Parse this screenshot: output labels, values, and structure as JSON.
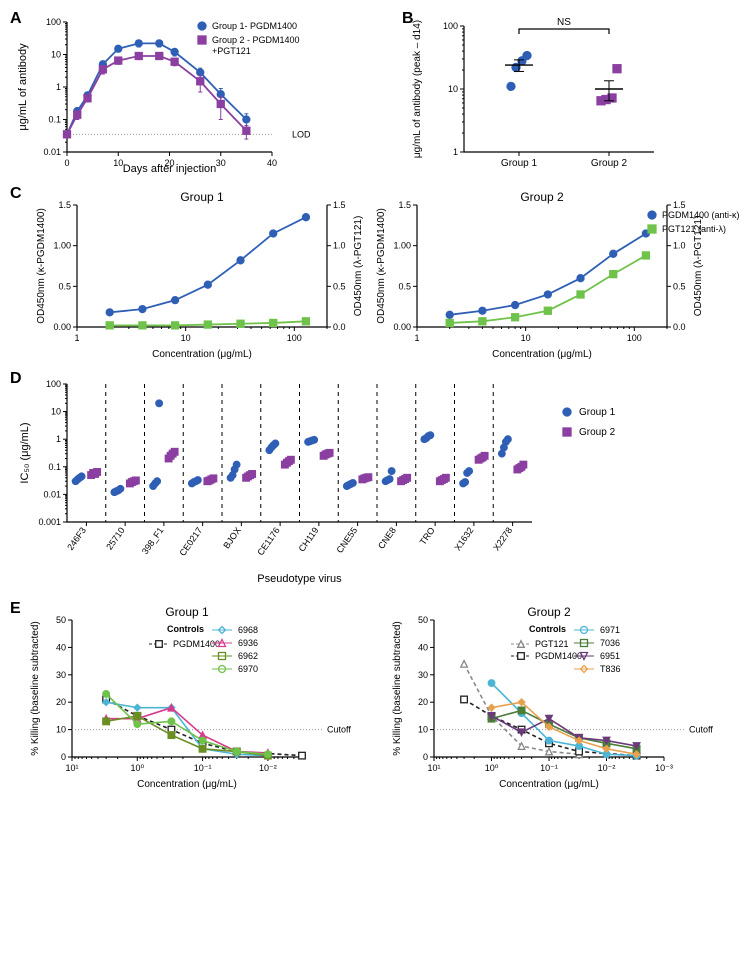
{
  "colors": {
    "blue": "#2e5fb5",
    "purple": "#8b3fa0",
    "green": "#6fc24a",
    "pink": "#d63b8e",
    "cyan": "#4cb5d6",
    "olive": "#6b8e23",
    "orange": "#e8a04d",
    "black": "#222222",
    "gray": "#888888"
  },
  "panelA": {
    "label": "A",
    "type": "line",
    "xlabel": "Days after injection",
    "ylabel": "μg/mL of antibody",
    "xlim": [
      0,
      40
    ],
    "xticks": [
      0,
      10,
      20,
      30,
      40
    ],
    "ylim": [
      0.01,
      100
    ],
    "yticks": [
      0.01,
      0.1,
      1,
      10,
      100
    ],
    "lod_y": 0.035,
    "lod_label": "LOD",
    "series": [
      {
        "name": "Group 1- PGDM1400",
        "color": "#2e5fb5",
        "marker": "circle",
        "x": [
          0,
          2,
          4,
          7,
          10,
          14,
          18,
          21,
          26,
          30,
          35
        ],
        "y": [
          0.035,
          0.18,
          0.55,
          5,
          15,
          22,
          22,
          12,
          2.8,
          0.6,
          0.1
        ],
        "err": [
          0,
          0.05,
          0.12,
          1.2,
          3,
          5,
          5,
          3,
          1,
          0.3,
          0.05
        ]
      },
      {
        "name": "Group 2 - PGDM1400 +PGT121",
        "color": "#8b3fa0",
        "marker": "square",
        "x": [
          0,
          2,
          4,
          7,
          10,
          14,
          18,
          21,
          26,
          30,
          35
        ],
        "y": [
          0.035,
          0.14,
          0.45,
          3.5,
          6.5,
          9,
          9,
          6,
          1.5,
          0.3,
          0.045
        ],
        "err": [
          0,
          0.04,
          0.1,
          1,
          1.5,
          2,
          2,
          1.5,
          0.8,
          0.2,
          0.02
        ]
      }
    ],
    "legend": [
      "Group 1- PGDM1400",
      "Group 2 - PGDM1400\n                 +PGT121"
    ]
  },
  "panelB": {
    "label": "B",
    "type": "strip",
    "ylabel": "μg/mL of antibody (peak – d14)",
    "ylim": [
      1,
      100
    ],
    "yticks": [
      1,
      10,
      100
    ],
    "ns_label": "NS",
    "categories": [
      "Group 1",
      "Group 2"
    ],
    "points": [
      {
        "group": 0,
        "y": [
          11,
          22,
          28,
          34
        ],
        "color": "#2e5fb5",
        "marker": "circle",
        "mean": 24,
        "sem": 5
      },
      {
        "group": 1,
        "y": [
          6.5,
          6.8,
          7.2,
          21
        ],
        "color": "#8b3fa0",
        "marker": "square",
        "mean": 10,
        "sem": 3.5
      }
    ]
  },
  "panelC": {
    "label": "C",
    "type": "line-dual-y",
    "xlabel": "Concentration (μg/mL)",
    "ylabel_left": "OD450nm (κ-PGDM1400)",
    "ylabel_right": "OD450nm (λ-PGT121)",
    "xlim": [
      1,
      200
    ],
    "xticks": [
      1,
      10,
      100
    ],
    "ylim": [
      0,
      1.5
    ],
    "yticks": [
      0,
      0.5,
      1.0,
      1.5
    ],
    "titles": [
      "Group 1",
      "Group 2"
    ],
    "legend": [
      {
        "name": "PGDM1400 (anti-κ)",
        "color": "#2e5fb5",
        "marker": "circle"
      },
      {
        "name": "PGT121 (anti-λ)",
        "color": "#6fc24a",
        "marker": "square"
      }
    ],
    "left": {
      "kappa": {
        "x": [
          2,
          4,
          8,
          16,
          32,
          64,
          128
        ],
        "y": [
          0.18,
          0.22,
          0.33,
          0.52,
          0.82,
          1.15,
          1.35
        ],
        "err": [
          0.02,
          0.02,
          0.02,
          0.03,
          0.04,
          0.05,
          0.05
        ]
      },
      "lambda": {
        "x": [
          2,
          4,
          8,
          16,
          32,
          64,
          128
        ],
        "y": [
          0.02,
          0.02,
          0.02,
          0.03,
          0.04,
          0.05,
          0.07
        ],
        "err": [
          0.01,
          0.01,
          0.01,
          0.01,
          0.01,
          0.01,
          0.01
        ]
      }
    },
    "right": {
      "kappa": {
        "x": [
          2,
          4,
          8,
          16,
          32,
          64,
          128
        ],
        "y": [
          0.15,
          0.2,
          0.27,
          0.4,
          0.6,
          0.9,
          1.15
        ],
        "err": [
          0.02,
          0.02,
          0.02,
          0.03,
          0.03,
          0.04,
          0.04
        ]
      },
      "lambda": {
        "x": [
          2,
          4,
          8,
          16,
          32,
          64,
          128
        ],
        "y": [
          0.05,
          0.07,
          0.12,
          0.2,
          0.4,
          0.65,
          0.88
        ],
        "err": [
          0.01,
          0.01,
          0.02,
          0.02,
          0.03,
          0.04,
          0.04
        ]
      }
    }
  },
  "panelD": {
    "label": "D",
    "type": "strip-categorical",
    "ylabel": "IC₅₀ (μg/mL)",
    "xlabel": "Pseudotype virus",
    "ylim": [
      0.001,
      100
    ],
    "yticks": [
      0.001,
      0.01,
      0.1,
      1,
      10,
      100
    ],
    "categories": [
      "246F3",
      "25710",
      "398_F1",
      "CE0217",
      "BJOX",
      "CE1176",
      "CH119",
      "CNE55",
      "CNE8",
      "TRO",
      "X1632",
      "X2278"
    ],
    "legend": [
      {
        "name": "Group 1",
        "color": "#2e5fb5",
        "marker": "circle"
      },
      {
        "name": "Group 2",
        "color": "#8b3fa0",
        "marker": "square"
      }
    ],
    "data": {
      "246F3": {
        "g1": [
          0.03,
          0.035,
          0.04,
          0.045
        ],
        "g2": [
          0.05,
          0.06,
          0.055,
          0.065
        ]
      },
      "25710": {
        "g1": [
          0.012,
          0.013,
          0.014,
          0.016
        ],
        "g2": [
          0.025,
          0.028,
          0.03,
          0.032
        ]
      },
      "398_F1": {
        "g1": [
          0.02,
          0.025,
          0.03,
          20
        ],
        "g2": [
          0.2,
          0.25,
          0.3,
          0.35
        ]
      },
      "CE0217": {
        "g1": [
          0.025,
          0.028,
          0.03,
          0.033
        ],
        "g2": [
          0.03,
          0.032,
          0.035,
          0.038
        ]
      },
      "BJOX": {
        "g1": [
          0.04,
          0.05,
          0.08,
          0.12
        ],
        "g2": [
          0.04,
          0.045,
          0.05,
          0.055
        ]
      },
      "CE1176": {
        "g1": [
          0.4,
          0.5,
          0.6,
          0.7
        ],
        "g2": [
          0.12,
          0.14,
          0.16,
          0.18
        ]
      },
      "CH119": {
        "g1": [
          0.8,
          0.85,
          0.9,
          0.95
        ],
        "g2": [
          0.25,
          0.28,
          0.3,
          0.32
        ]
      },
      "CNE55": {
        "g1": [
          0.02,
          0.022,
          0.024,
          0.026
        ],
        "g2": [
          0.035,
          0.038,
          0.04,
          0.042
        ]
      },
      "CNE8": {
        "g1": [
          0.03,
          0.033,
          0.036,
          0.07
        ],
        "g2": [
          0.03,
          0.033,
          0.036,
          0.04
        ]
      },
      "TRO": {
        "g1": [
          1.0,
          1.1,
          1.3,
          1.4
        ],
        "g2": [
          0.03,
          0.033,
          0.036,
          0.04
        ]
      },
      "X1632": {
        "g1": [
          0.025,
          0.028,
          0.06,
          0.07
        ],
        "g2": [
          0.18,
          0.2,
          0.22,
          0.25
        ]
      },
      "X2278": {
        "g1": [
          0.3,
          0.5,
          0.8,
          1.0
        ],
        "g2": [
          0.08,
          0.09,
          0.1,
          0.12
        ]
      }
    }
  },
  "panelE": {
    "label": "E",
    "type": "line",
    "xlabel": "Concentration (μg/mL)",
    "ylabel": "% Killing (baseline subtracted)",
    "xlim": [
      0.003,
      30
    ],
    "xreverse": true,
    "ylim": [
      0,
      50
    ],
    "yticks": [
      0,
      10,
      20,
      30,
      40,
      50
    ],
    "cutoff_y": 10,
    "cutoff_label": "Cutoff",
    "titles": [
      "Group 1",
      "Group 2"
    ],
    "left": {
      "controls": [
        {
          "name": "PGDM1400",
          "color": "#222222",
          "marker": "square",
          "dash": true,
          "x": [
            3,
            1,
            0.3,
            0.1,
            0.03,
            0.003
          ],
          "y": [
            21,
            15,
            10,
            5,
            2,
            0.5
          ]
        }
      ],
      "series": [
        {
          "name": "6968",
          "color": "#4cb5d6",
          "marker": "diamond",
          "x": [
            3,
            1,
            0.3,
            0.1,
            0.03,
            0.01
          ],
          "y": [
            20,
            18,
            18,
            3,
            1,
            0.5
          ]
        },
        {
          "name": "6936",
          "color": "#d63b8e",
          "marker": "triangle",
          "x": [
            3,
            1,
            0.3,
            0.1,
            0.03,
            0.01
          ],
          "y": [
            14,
            14,
            18,
            8,
            2,
            1.5
          ]
        },
        {
          "name": "6962",
          "color": "#6b8e23",
          "marker": "square",
          "x": [
            3,
            1,
            0.3,
            0.1,
            0.03,
            0.01
          ],
          "y": [
            13,
            15,
            8,
            3,
            2,
            0.5
          ]
        },
        {
          "name": "6970",
          "color": "#6fc24a",
          "marker": "circle",
          "x": [
            3,
            1,
            0.3,
            0.1,
            0.03,
            0.01
          ],
          "y": [
            23,
            12,
            13,
            6,
            2,
            1
          ]
        }
      ]
    },
    "right": {
      "controls": [
        {
          "name": "PGT121",
          "color": "#888888",
          "marker": "triangle",
          "dash": true,
          "x": [
            3,
            1,
            0.3,
            0.1,
            0.03
          ],
          "y": [
            34,
            15,
            4,
            2,
            1
          ]
        },
        {
          "name": "PGDM1400",
          "color": "#222222",
          "marker": "square",
          "dash": true,
          "x": [
            3,
            1,
            0.3,
            0.1,
            0.03,
            0.003
          ],
          "y": [
            21,
            15,
            10,
            5,
            2,
            0.5
          ]
        }
      ],
      "series": [
        {
          "name": "6971",
          "color": "#4cb5d6",
          "marker": "circle",
          "x": [
            1,
            0.3,
            0.1,
            0.03,
            0.01,
            0.003
          ],
          "y": [
            27,
            16,
            6,
            4,
            1,
            0.5
          ]
        },
        {
          "name": "7036",
          "color": "#4a7c3a",
          "marker": "square",
          "x": [
            1,
            0.3,
            0.1,
            0.03,
            0.01,
            0.003
          ],
          "y": [
            14,
            17,
            12,
            7,
            5,
            3
          ]
        },
        {
          "name": "6951",
          "color": "#6a3a7a",
          "marker": "triangle-down",
          "x": [
            1,
            0.3,
            0.1,
            0.03,
            0.01,
            0.003
          ],
          "y": [
            15,
            9,
            14,
            7,
            6,
            4
          ]
        },
        {
          "name": "T836",
          "color": "#e8a04d",
          "marker": "diamond",
          "x": [
            1,
            0.3,
            0.1,
            0.03,
            0.01,
            0.003
          ],
          "y": [
            18,
            20,
            11,
            6,
            3,
            1
          ]
        }
      ]
    },
    "xticks": [
      {
        "val": 10,
        "label": "10¹"
      },
      {
        "val": 1,
        "label": "10⁰"
      },
      {
        "val": 0.1,
        "label": "10⁻¹"
      },
      {
        "val": 0.01,
        "label": "10⁻²"
      },
      {
        "val": 0.001,
        "label": "10⁻³"
      }
    ]
  }
}
